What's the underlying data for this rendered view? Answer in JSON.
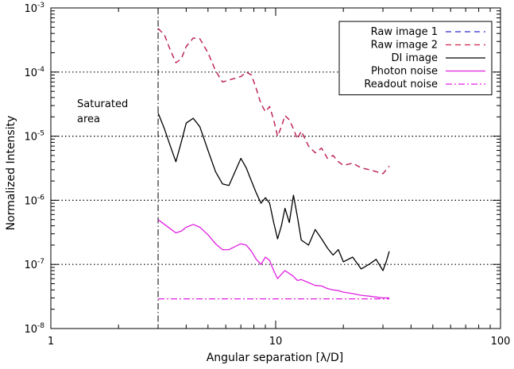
{
  "chart_data": {
    "type": "line",
    "xlabel": "Angular separation [λ/D]",
    "ylabel": "Normalized Intensity",
    "xscale": "log",
    "yscale": "log",
    "xlim": [
      1,
      100
    ],
    "ylim": [
      1e-08,
      0.001
    ],
    "x_ticks": [
      {
        "value": 1,
        "label": "1"
      },
      {
        "value": 10,
        "label": "10"
      },
      {
        "value": 100,
        "label": "100"
      }
    ],
    "y_ticks": [
      {
        "value": 1e-08,
        "mantissa": "10",
        "exp": "-8"
      },
      {
        "value": 1e-07,
        "mantissa": "10",
        "exp": "-7"
      },
      {
        "value": 1e-06,
        "mantissa": "10",
        "exp": "-6"
      },
      {
        "value": 1e-05,
        "mantissa": "10",
        "exp": "-5"
      },
      {
        "value": 0.0001,
        "mantissa": "10",
        "exp": "-4"
      },
      {
        "value": 0.001,
        "mantissa": "10",
        "exp": "-3"
      }
    ],
    "grid": {
      "horizontal_dotted_at": [
        1e-07,
        1e-06,
        1e-05,
        0.0001
      ]
    },
    "legend_position": "top-right",
    "annotation": {
      "lines": [
        "Saturated",
        "area"
      ],
      "x_separator": 3
    },
    "series": [
      {
        "name": "Raw image 1",
        "color": "#2b2bd0",
        "dash": "7,5",
        "x": [
          3.0,
          3.2,
          3.4,
          3.6,
          3.8,
          4.0,
          4.3,
          4.6,
          5.0,
          5.4,
          5.8,
          6.2,
          6.6,
          7.0,
          7.4,
          7.8,
          8.2,
          8.6,
          9.0,
          9.4,
          9.8,
          10.2,
          10.6,
          11.0,
          11.5,
          12.0,
          12.5,
          13.0,
          14.0,
          15.0,
          16.0,
          17.0,
          18.0,
          19.0,
          20.0,
          22.0,
          24.0,
          26.0,
          28.0,
          30.0,
          32.0
        ],
        "y": [
          0.00048,
          0.00038,
          0.00022,
          0.00014,
          0.00016,
          0.00025,
          0.00034,
          0.00033,
          0.0002,
          0.000105,
          7e-05,
          7.5e-05,
          8e-05,
          8.5e-05,
          0.0001,
          9e-05,
          5.5e-05,
          3.2e-05,
          2.4e-05,
          2.9e-05,
          1.8e-05,
          1e-05,
          1.4e-05,
          2.1e-05,
          1.8e-05,
          1.3e-05,
          9e-06,
          1.2e-05,
          7e-06,
          5.5e-06,
          6.5e-06,
          4.5e-06,
          5e-06,
          4e-06,
          3.5e-06,
          3.8e-06,
          3.2e-06,
          3e-06,
          2.8e-06,
          2.6e-06,
          3.4e-06
        ]
      },
      {
        "name": "Raw image 2",
        "color": "#d0234a",
        "dash": "7,5",
        "x": [
          3.0,
          3.2,
          3.4,
          3.6,
          3.8,
          4.0,
          4.3,
          4.6,
          5.0,
          5.4,
          5.8,
          6.2,
          6.6,
          7.0,
          7.4,
          7.8,
          8.2,
          8.6,
          9.0,
          9.4,
          9.8,
          10.2,
          10.6,
          11.0,
          11.5,
          12.0,
          12.5,
          13.0,
          14.0,
          15.0,
          16.0,
          17.0,
          18.0,
          19.0,
          20.0,
          22.0,
          24.0,
          26.0,
          28.0,
          30.0,
          32.0
        ],
        "y": [
          0.00048,
          0.00038,
          0.00022,
          0.00014,
          0.00016,
          0.00025,
          0.00034,
          0.00033,
          0.0002,
          0.000105,
          7e-05,
          7.5e-05,
          8e-05,
          8.5e-05,
          0.0001,
          9e-05,
          5.5e-05,
          3.2e-05,
          2.4e-05,
          2.9e-05,
          1.8e-05,
          1e-05,
          1.4e-05,
          2.1e-05,
          1.8e-05,
          1.3e-05,
          9e-06,
          1.2e-05,
          7e-06,
          5.5e-06,
          6.5e-06,
          4.5e-06,
          5e-06,
          4e-06,
          3.5e-06,
          3.8e-06,
          3.2e-06,
          3e-06,
          2.8e-06,
          2.6e-06,
          3.4e-06
        ]
      },
      {
        "name": "DI image",
        "color": "#000000",
        "dash": "",
        "x": [
          3.0,
          3.2,
          3.4,
          3.6,
          3.8,
          4.0,
          4.3,
          4.6,
          5.0,
          5.4,
          5.8,
          6.2,
          6.6,
          7.0,
          7.4,
          7.8,
          8.2,
          8.6,
          9.0,
          9.4,
          9.8,
          10.2,
          10.6,
          11.0,
          11.5,
          12.0,
          12.5,
          13.0,
          14.0,
          15.0,
          16.0,
          17.0,
          18.0,
          19.0,
          20.0,
          22.0,
          24.0,
          26.0,
          28.0,
          30.0,
          31.0,
          32.0
        ],
        "y": [
          2.3e-05,
          1.3e-05,
          7e-06,
          4e-06,
          8e-06,
          1.6e-05,
          1.9e-05,
          1.4e-05,
          6e-06,
          2.8e-06,
          1.8e-06,
          1.7e-06,
          2.8e-06,
          4.5e-06,
          3.2e-06,
          2e-06,
          1.3e-06,
          9e-07,
          1.1e-06,
          9e-07,
          4.5e-07,
          2.5e-07,
          4e-07,
          7.5e-07,
          4.5e-07,
          1.2e-06,
          5.5e-07,
          2.4e-07,
          2e-07,
          3.5e-07,
          2.5e-07,
          1.8e-07,
          1.4e-07,
          1.7e-07,
          1.1e-07,
          1.3e-07,
          8.5e-08,
          1e-07,
          1.2e-07,
          8e-08,
          1.1e-07,
          1.6e-07
        ]
      },
      {
        "name": "Photon noise",
        "color": "#e020e0",
        "dash": "",
        "x": [
          3.0,
          3.2,
          3.4,
          3.6,
          3.8,
          4.0,
          4.3,
          4.6,
          5.0,
          5.4,
          5.8,
          6.2,
          6.6,
          7.0,
          7.4,
          7.8,
          8.2,
          8.6,
          9.0,
          9.4,
          9.8,
          10.2,
          10.6,
          11.0,
          11.5,
          12.0,
          12.5,
          13.0,
          14.0,
          15.0,
          16.0,
          17.0,
          18.0,
          19.0,
          20.0,
          22.0,
          24.0,
          26.0,
          28.0,
          30.0,
          32.0
        ],
        "y": [
          5e-07,
          4.2e-07,
          3.6e-07,
          3.1e-07,
          3.3e-07,
          3.8e-07,
          4.2e-07,
          3.8e-07,
          2.9e-07,
          2.1e-07,
          1.7e-07,
          1.7e-07,
          1.9e-07,
          2.1e-07,
          2e-07,
          1.6e-07,
          1.2e-07,
          1e-07,
          1.3e-07,
          1.15e-07,
          8e-08,
          6e-08,
          7e-08,
          8e-08,
          7.2e-08,
          6.5e-08,
          5.6e-08,
          5.8e-08,
          5.2e-08,
          4.7e-08,
          4.6e-08,
          4.2e-08,
          4e-08,
          3.9e-08,
          3.7e-08,
          3.5e-08,
          3.3e-08,
          3.2e-08,
          3.1e-08,
          3e-08,
          3e-08
        ]
      },
      {
        "name": "Readout noise",
        "color": "#e020e0",
        "dash": "8,3,2,3",
        "x": [
          3.0,
          32.0
        ],
        "y": [
          2.9e-08,
          2.9e-08
        ]
      }
    ]
  }
}
